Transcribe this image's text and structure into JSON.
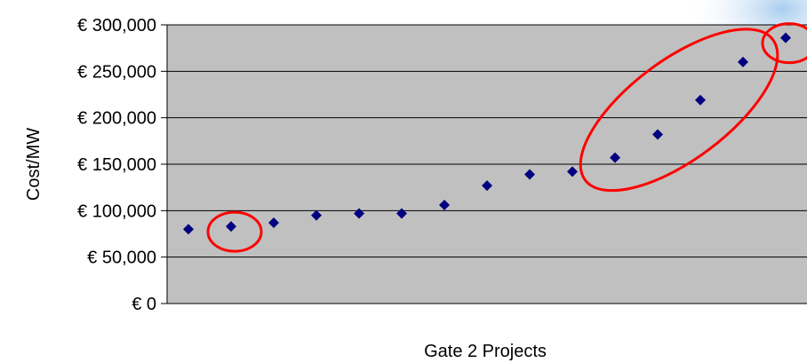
{
  "chart_data": {
    "type": "scatter",
    "title": "",
    "xlabel": "Gate 2 Projects",
    "ylabel": "Cost/MW",
    "ylim": [
      0,
      300000
    ],
    "yticks": [
      0,
      50000,
      100000,
      150000,
      200000,
      250000,
      300000
    ],
    "ytick_labels": [
      "€ 0",
      "€ 50,000",
      "€ 100,000",
      "€ 150,000",
      "€ 200,000",
      "€ 250,000",
      "€ 300,000"
    ],
    "xlim": [
      0.5,
      15.5
    ],
    "grid": true,
    "legend": "none",
    "series": [
      {
        "x": [
          1,
          2,
          3,
          4,
          5,
          6,
          7,
          8,
          9,
          10,
          11,
          12,
          13,
          14,
          15
        ],
        "values": [
          80000,
          83000,
          87000,
          95000,
          97000,
          97000,
          106000,
          127000,
          139000,
          142000,
          157000,
          182000,
          219000,
          260000,
          286000
        ]
      }
    ],
    "annotations": [
      {
        "shape": "ellipse",
        "around_points": [
          2
        ]
      },
      {
        "shape": "ellipse",
        "around_points": [
          11,
          12,
          13,
          14
        ]
      },
      {
        "shape": "ellipse",
        "around_points": [
          15
        ]
      }
    ],
    "colors": {
      "plot_background": "#c0c0c0",
      "marker": "#000080",
      "highlight": "#ff0000",
      "gridline": "#000000"
    }
  }
}
